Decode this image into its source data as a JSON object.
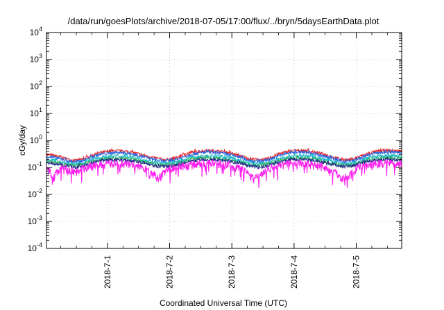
{
  "chart_data": {
    "type": "line",
    "title": "/data/run/goesPlots/archive/2018-07-05/17:00/flux/../bryn/5daysEarthData.plot",
    "xlabel": "Coordinated Universal Time (UTC)",
    "ylabel": "cGy/day",
    "yscale": "log",
    "ylim": [
      0.0001,
      10000
    ],
    "x_range_days": [
      -0.98,
      4.73
    ],
    "grid": true,
    "y_ticks": [
      {
        "value": 0.0001,
        "base": "10",
        "exp": "-4"
      },
      {
        "value": 0.001,
        "base": "10",
        "exp": "-3"
      },
      {
        "value": 0.01,
        "base": "10",
        "exp": "-2"
      },
      {
        "value": 0.1,
        "base": "10",
        "exp": "-1"
      },
      {
        "value": 1,
        "base": "10",
        "exp": "0"
      },
      {
        "value": 10,
        "base": "10",
        "exp": "1"
      },
      {
        "value": 100,
        "base": "10",
        "exp": "2"
      },
      {
        "value": 1000,
        "base": "10",
        "exp": "3"
      },
      {
        "value": 10000,
        "base": "10",
        "exp": "4"
      }
    ],
    "x_ticks": [
      {
        "label": "2018-7-1",
        "day": 0
      },
      {
        "label": "2018-7-2",
        "day": 1
      },
      {
        "label": "2018-7-3",
        "day": 2
      },
      {
        "label": "2018-7-4",
        "day": 3
      },
      {
        "label": "2018-7-5",
        "day": 4
      }
    ],
    "series": [
      {
        "color": "#e8262a",
        "values": [
          0.3,
          0.28,
          0.26,
          0.22,
          0.19,
          0.18,
          0.2,
          0.24,
          0.3,
          0.35,
          0.38,
          0.4,
          0.41,
          0.4,
          0.38,
          0.34,
          0.3,
          0.26,
          0.23,
          0.21,
          0.19,
          0.2,
          0.23,
          0.28,
          0.34,
          0.38,
          0.4,
          0.42,
          0.41,
          0.4,
          0.38,
          0.34,
          0.3,
          0.26,
          0.22,
          0.2,
          0.19,
          0.2,
          0.24,
          0.3,
          0.35,
          0.4,
          0.42,
          0.42,
          0.41,
          0.38,
          0.34,
          0.3,
          0.26,
          0.22,
          0.2,
          0.19,
          0.21,
          0.26,
          0.31,
          0.36,
          0.4,
          0.42,
          0.42,
          0.41,
          0.4
        ]
      },
      {
        "color": "#2a66e0",
        "values": [
          0.26,
          0.24,
          0.22,
          0.19,
          0.17,
          0.16,
          0.18,
          0.21,
          0.26,
          0.3,
          0.33,
          0.35,
          0.36,
          0.35,
          0.33,
          0.3,
          0.26,
          0.23,
          0.2,
          0.18,
          0.17,
          0.18,
          0.2,
          0.24,
          0.29,
          0.33,
          0.35,
          0.37,
          0.36,
          0.35,
          0.33,
          0.3,
          0.26,
          0.23,
          0.19,
          0.17,
          0.17,
          0.18,
          0.21,
          0.26,
          0.3,
          0.35,
          0.37,
          0.37,
          0.36,
          0.33,
          0.3,
          0.26,
          0.23,
          0.19,
          0.17,
          0.17,
          0.18,
          0.22,
          0.27,
          0.31,
          0.35,
          0.37,
          0.37,
          0.36,
          0.35
        ]
      },
      {
        "color": "#19b8c8",
        "values": [
          0.2,
          0.19,
          0.17,
          0.15,
          0.14,
          0.13,
          0.14,
          0.17,
          0.2,
          0.23,
          0.25,
          0.26,
          0.27,
          0.26,
          0.25,
          0.23,
          0.2,
          0.18,
          0.16,
          0.15,
          0.14,
          0.15,
          0.16,
          0.19,
          0.22,
          0.25,
          0.26,
          0.27,
          0.27,
          0.26,
          0.25,
          0.23,
          0.2,
          0.18,
          0.15,
          0.14,
          0.14,
          0.15,
          0.17,
          0.2,
          0.23,
          0.26,
          0.27,
          0.27,
          0.27,
          0.25,
          0.23,
          0.2,
          0.18,
          0.15,
          0.14,
          0.14,
          0.15,
          0.17,
          0.21,
          0.24,
          0.26,
          0.27,
          0.27,
          0.27,
          0.26
        ]
      },
      {
        "color": "#2fb36b",
        "values": [
          0.17,
          0.16,
          0.15,
          0.13,
          0.12,
          0.12,
          0.13,
          0.15,
          0.17,
          0.19,
          0.21,
          0.22,
          0.22,
          0.22,
          0.21,
          0.19,
          0.17,
          0.15,
          0.14,
          0.13,
          0.12,
          0.13,
          0.14,
          0.16,
          0.19,
          0.21,
          0.22,
          0.23,
          0.22,
          0.22,
          0.21,
          0.19,
          0.17,
          0.15,
          0.13,
          0.12,
          0.12,
          0.13,
          0.15,
          0.17,
          0.2,
          0.22,
          0.23,
          0.23,
          0.22,
          0.21,
          0.19,
          0.17,
          0.15,
          0.13,
          0.12,
          0.12,
          0.13,
          0.15,
          0.18,
          0.2,
          0.22,
          0.23,
          0.23,
          0.22,
          0.22
        ]
      },
      {
        "color": "#2a2a8c",
        "values": [
          0.15,
          0.14,
          0.13,
          0.12,
          0.11,
          0.1,
          0.11,
          0.13,
          0.15,
          0.17,
          0.18,
          0.19,
          0.19,
          0.19,
          0.18,
          0.17,
          0.15,
          0.14,
          0.12,
          0.11,
          0.11,
          0.11,
          0.12,
          0.14,
          0.16,
          0.18,
          0.19,
          0.2,
          0.19,
          0.19,
          0.18,
          0.17,
          0.15,
          0.14,
          0.12,
          0.11,
          0.1,
          0.11,
          0.13,
          0.15,
          0.17,
          0.19,
          0.2,
          0.2,
          0.19,
          0.18,
          0.17,
          0.15,
          0.13,
          0.12,
          0.11,
          0.11,
          0.12,
          0.14,
          0.16,
          0.18,
          0.19,
          0.2,
          0.2,
          0.19,
          0.19
        ]
      },
      {
        "color": "#ff1ff0",
        "values": [
          0.12,
          0.03,
          0.08,
          0.1,
          0.08,
          0.07,
          0.09,
          0.1,
          0.12,
          0.13,
          0.14,
          0.14,
          0.15,
          0.14,
          0.13,
          0.12,
          0.1,
          0.08,
          0.06,
          0.04,
          0.07,
          0.09,
          0.1,
          0.11,
          0.12,
          0.13,
          0.14,
          0.15,
          0.14,
          0.14,
          0.13,
          0.12,
          0.1,
          0.09,
          0.06,
          0.04,
          0.05,
          0.08,
          0.1,
          0.11,
          0.13,
          0.14,
          0.15,
          0.15,
          0.14,
          0.13,
          0.12,
          0.1,
          0.08,
          0.06,
          0.04,
          0.05,
          0.08,
          0.1,
          0.12,
          0.13,
          0.14,
          0.15,
          0.15,
          0.14,
          0.14
        ]
      }
    ]
  }
}
